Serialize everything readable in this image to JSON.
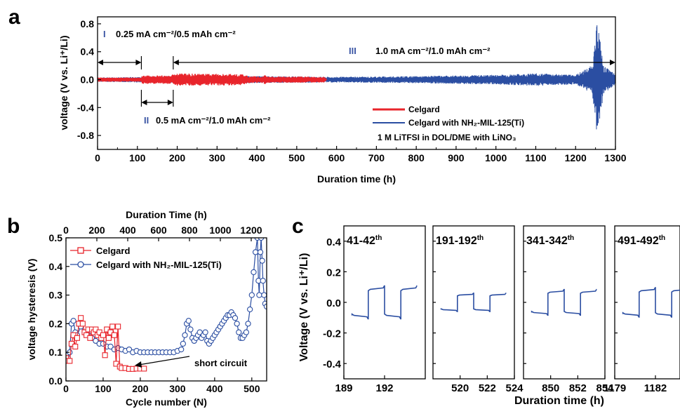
{
  "panel_labels": {
    "a": "a",
    "b": "b",
    "c": "c"
  },
  "colors": {
    "celgard": "#e8242b",
    "mil": "#2b4ea2",
    "roman": "#3a55a4"
  },
  "chart_data": [
    {
      "id": "a",
      "type": "line",
      "xlabel": "Duration time (h)",
      "ylabel": "voltage (V vs. Li⁺/Li)",
      "xlim": [
        0,
        1300
      ],
      "ylim": [
        -1.0,
        0.9
      ],
      "xticks": [
        "0",
        "100",
        "200",
        "300",
        "400",
        "500",
        "600",
        "700",
        "800",
        "900",
        "1000",
        "1100",
        "1200",
        "1300"
      ],
      "yticks": [
        "0.8",
        "0.4",
        "0.0",
        "-0.4",
        "-0.8"
      ],
      "series": [
        {
          "name": "Celgard",
          "color": "#e8242b",
          "envelope": {
            "h": [
              0,
              110,
              112,
              186,
              190,
              360,
              380,
              570,
              575
            ],
            "amp": [
              0.03,
              0.03,
              0.06,
              0.06,
              0.09,
              0.08,
              0.05,
              0.04,
              0
            ]
          }
        },
        {
          "name": "Celgard with NH₂-MIL-125(Ti)",
          "color": "#2b4ea2",
          "envelope": {
            "h": [
              0,
              110,
              190,
              400,
              600,
              800,
              1000,
              1100,
              1200,
              1240,
              1250,
              1255,
              1262,
              1270,
              1300
            ],
            "amp": [
              0.03,
              0.04,
              0.05,
              0.05,
              0.04,
              0.05,
              0.07,
              0.09,
              0.07,
              0.2,
              0.55,
              0.95,
              0.55,
              0.2,
              0.08
            ]
          }
        }
      ],
      "annotations": {
        "I": {
          "roman": "I",
          "text": "0.25 mA cm⁻²/0.5 mAh cm⁻²",
          "range_h": [
            0,
            110
          ]
        },
        "II": {
          "roman": "II",
          "text": "0.5 mA cm⁻²/1.0 mAh cm⁻²",
          "range_h": [
            110,
            190
          ]
        },
        "III": {
          "roman": "III",
          "text": "1.0 mA cm⁻²/1.0 mAh cm⁻²",
          "range_h": [
            190,
            1300
          ]
        },
        "electrolyte": "1 M LiTFSI in DOL/DME with LiNO₃"
      },
      "legend": "center-right"
    },
    {
      "id": "b",
      "type": "line",
      "xlabel": "Cycle number (N)",
      "xlabel_top": "Duration Time (h)",
      "ylabel": "voltage hysteresis (V)",
      "xlim": [
        0,
        540
      ],
      "ylim": [
        0,
        0.5
      ],
      "xticks": [
        "0",
        "100",
        "200",
        "300",
        "400",
        "500"
      ],
      "xticks_top": [
        "0",
        "200",
        "400",
        "600",
        "800",
        "1000",
        "1200"
      ],
      "yticks": [
        "0.0",
        "0.1",
        "0.2",
        "0.3",
        "0.4",
        "0.5"
      ],
      "series": [
        {
          "name": "Celgard",
          "color": "#e8242b",
          "marker": "square",
          "x": [
            0,
            5,
            10,
            15,
            20,
            25,
            30,
            35,
            40,
            45,
            50,
            55,
            60,
            65,
            70,
            75,
            80,
            85,
            90,
            95,
            100,
            105,
            110,
            115,
            120,
            125,
            130,
            135,
            140,
            145,
            150,
            160,
            170,
            180,
            190,
            200,
            210
          ],
          "y": [
            0.08,
            0.07,
            0.07,
            0.13,
            0.16,
            0.12,
            0.15,
            0.2,
            0.22,
            0.2,
            0.17,
            0.16,
            0.18,
            0.15,
            0.18,
            0.17,
            0.18,
            0.16,
            0.17,
            0.15,
            0.16,
            0.09,
            0.18,
            0.15,
            0.17,
            0.19,
            0.16,
            0.06,
            0.19,
            0.05,
            0.045,
            0.045,
            0.042,
            0.042,
            0.043,
            0.043,
            0.043
          ]
        },
        {
          "name": "Celgard with NH₂-MIL-125(Ti)",
          "color": "#2b4ea2",
          "marker": "circle",
          "x": [
            0,
            5,
            10,
            15,
            20,
            25,
            30,
            40,
            50,
            60,
            70,
            80,
            90,
            100,
            110,
            120,
            130,
            140,
            150,
            160,
            170,
            180,
            190,
            200,
            210,
            220,
            230,
            240,
            250,
            260,
            270,
            280,
            290,
            300,
            310,
            315,
            320,
            325,
            330,
            335,
            340,
            345,
            350,
            355,
            360,
            365,
            370,
            375,
            380,
            385,
            390,
            395,
            400,
            405,
            410,
            415,
            420,
            425,
            430,
            435,
            440,
            445,
            450,
            455,
            460,
            465,
            470,
            475,
            480,
            485,
            490,
            495,
            500,
            505,
            510,
            515,
            518,
            520,
            523,
            525,
            528,
            530,
            533,
            536,
            540
          ],
          "y": [
            0.09,
            0.08,
            0.1,
            0.2,
            0.21,
            0.17,
            0.16,
            0.19,
            0.17,
            0.16,
            0.15,
            0.14,
            0.13,
            0.13,
            0.12,
            0.12,
            0.11,
            0.115,
            0.11,
            0.105,
            0.11,
            0.1,
            0.105,
            0.1,
            0.1,
            0.1,
            0.1,
            0.1,
            0.1,
            0.1,
            0.1,
            0.1,
            0.1,
            0.105,
            0.11,
            0.13,
            0.16,
            0.2,
            0.21,
            0.18,
            0.15,
            0.14,
            0.15,
            0.16,
            0.17,
            0.15,
            0.16,
            0.17,
            0.14,
            0.13,
            0.14,
            0.15,
            0.16,
            0.17,
            0.18,
            0.19,
            0.2,
            0.21,
            0.22,
            0.23,
            0.23,
            0.24,
            0.23,
            0.22,
            0.2,
            0.17,
            0.15,
            0.15,
            0.16,
            0.17,
            0.2,
            0.25,
            0.3,
            0.38,
            0.45,
            0.5,
            0.35,
            0.3,
            0.45,
            0.5,
            0.42,
            0.35,
            0.3,
            0.27,
            0.26
          ]
        }
      ],
      "annotations": {
        "short_circuit": "short circuit"
      },
      "legend": "top-left"
    },
    {
      "id": "c",
      "type": "line",
      "ylabel": "Voltage (V vs. Li⁺/Li)",
      "xlabel": "Duration time (h)",
      "ylim": [
        -0.5,
        0.5
      ],
      "yticks": [
        "0.4",
        "0.2",
        "0.0",
        "-0.2",
        "-0.4"
      ],
      "color": "#2b4ea2",
      "subpanels": [
        {
          "label": "41-42",
          "sup": "th",
          "xlim": [
            189,
            195
          ],
          "xticks": [
            "189",
            "192"
          ],
          "amp": 0.09
        },
        {
          "label": "191-192",
          "sup": "th",
          "xlim": [
            518,
            524
          ],
          "xticks": [
            "520",
            "522",
            "524"
          ],
          "amp": 0.05
        },
        {
          "label": "341-342",
          "sup": "th",
          "xlim": [
            848,
            854
          ],
          "xticks": [
            "850",
            "852",
            "854"
          ],
          "amp": 0.07
        },
        {
          "label": "491-492",
          "sup": "th",
          "xlim": [
            1179,
            1185
          ],
          "xticks": [
            "1179",
            "1182"
          ],
          "amp": 0.08
        }
      ]
    }
  ]
}
